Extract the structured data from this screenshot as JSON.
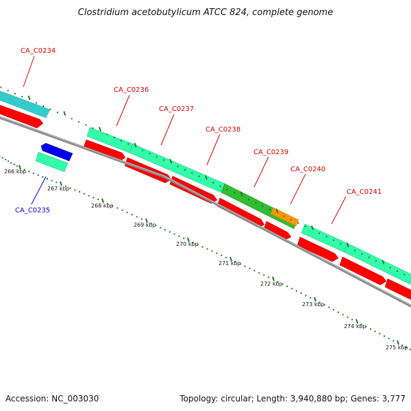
{
  "title": "Clostridium acetobutylicum ATCC 824, complete genome",
  "footer": {
    "accession": "Accession: NC_003030",
    "summary": "Topology: circular; Length: 3,940,880 bp; Genes: 3,777"
  },
  "colors": {
    "backbone": "#8a8a8a",
    "cds_forward": "#ff0000",
    "cds_reverse": "#0000ee",
    "gene_cyan": "#33cccc",
    "gene_aqua": "#33ffaa",
    "gene_green": "#33bb33",
    "gene_orange": "#ff9900",
    "tick": "#227722",
    "label_forward": "#cc0000",
    "label_reverse": "#0000cc"
  },
  "tick_labels": [
    "266 kbp",
    "267 kbp",
    "268 kbp",
    "269 kbp",
    "270 kbp",
    "271 kbp",
    "272 kbp",
    "273 kbp",
    "274 kbp",
    "275 kbp"
  ],
  "gene_labels": [
    {
      "name": "CA_C0234",
      "strand": "forward"
    },
    {
      "name": "CA_C0235",
      "strand": "reverse"
    },
    {
      "name": "CA_C0236",
      "strand": "forward"
    },
    {
      "name": "CA_C0237",
      "strand": "forward"
    },
    {
      "name": "CA_C0238",
      "strand": "forward"
    },
    {
      "name": "CA_C0239",
      "strand": "forward"
    },
    {
      "name": "CA_C0240",
      "strand": "forward"
    },
    {
      "name": "CA_C0241",
      "strand": "forward"
    }
  ]
}
